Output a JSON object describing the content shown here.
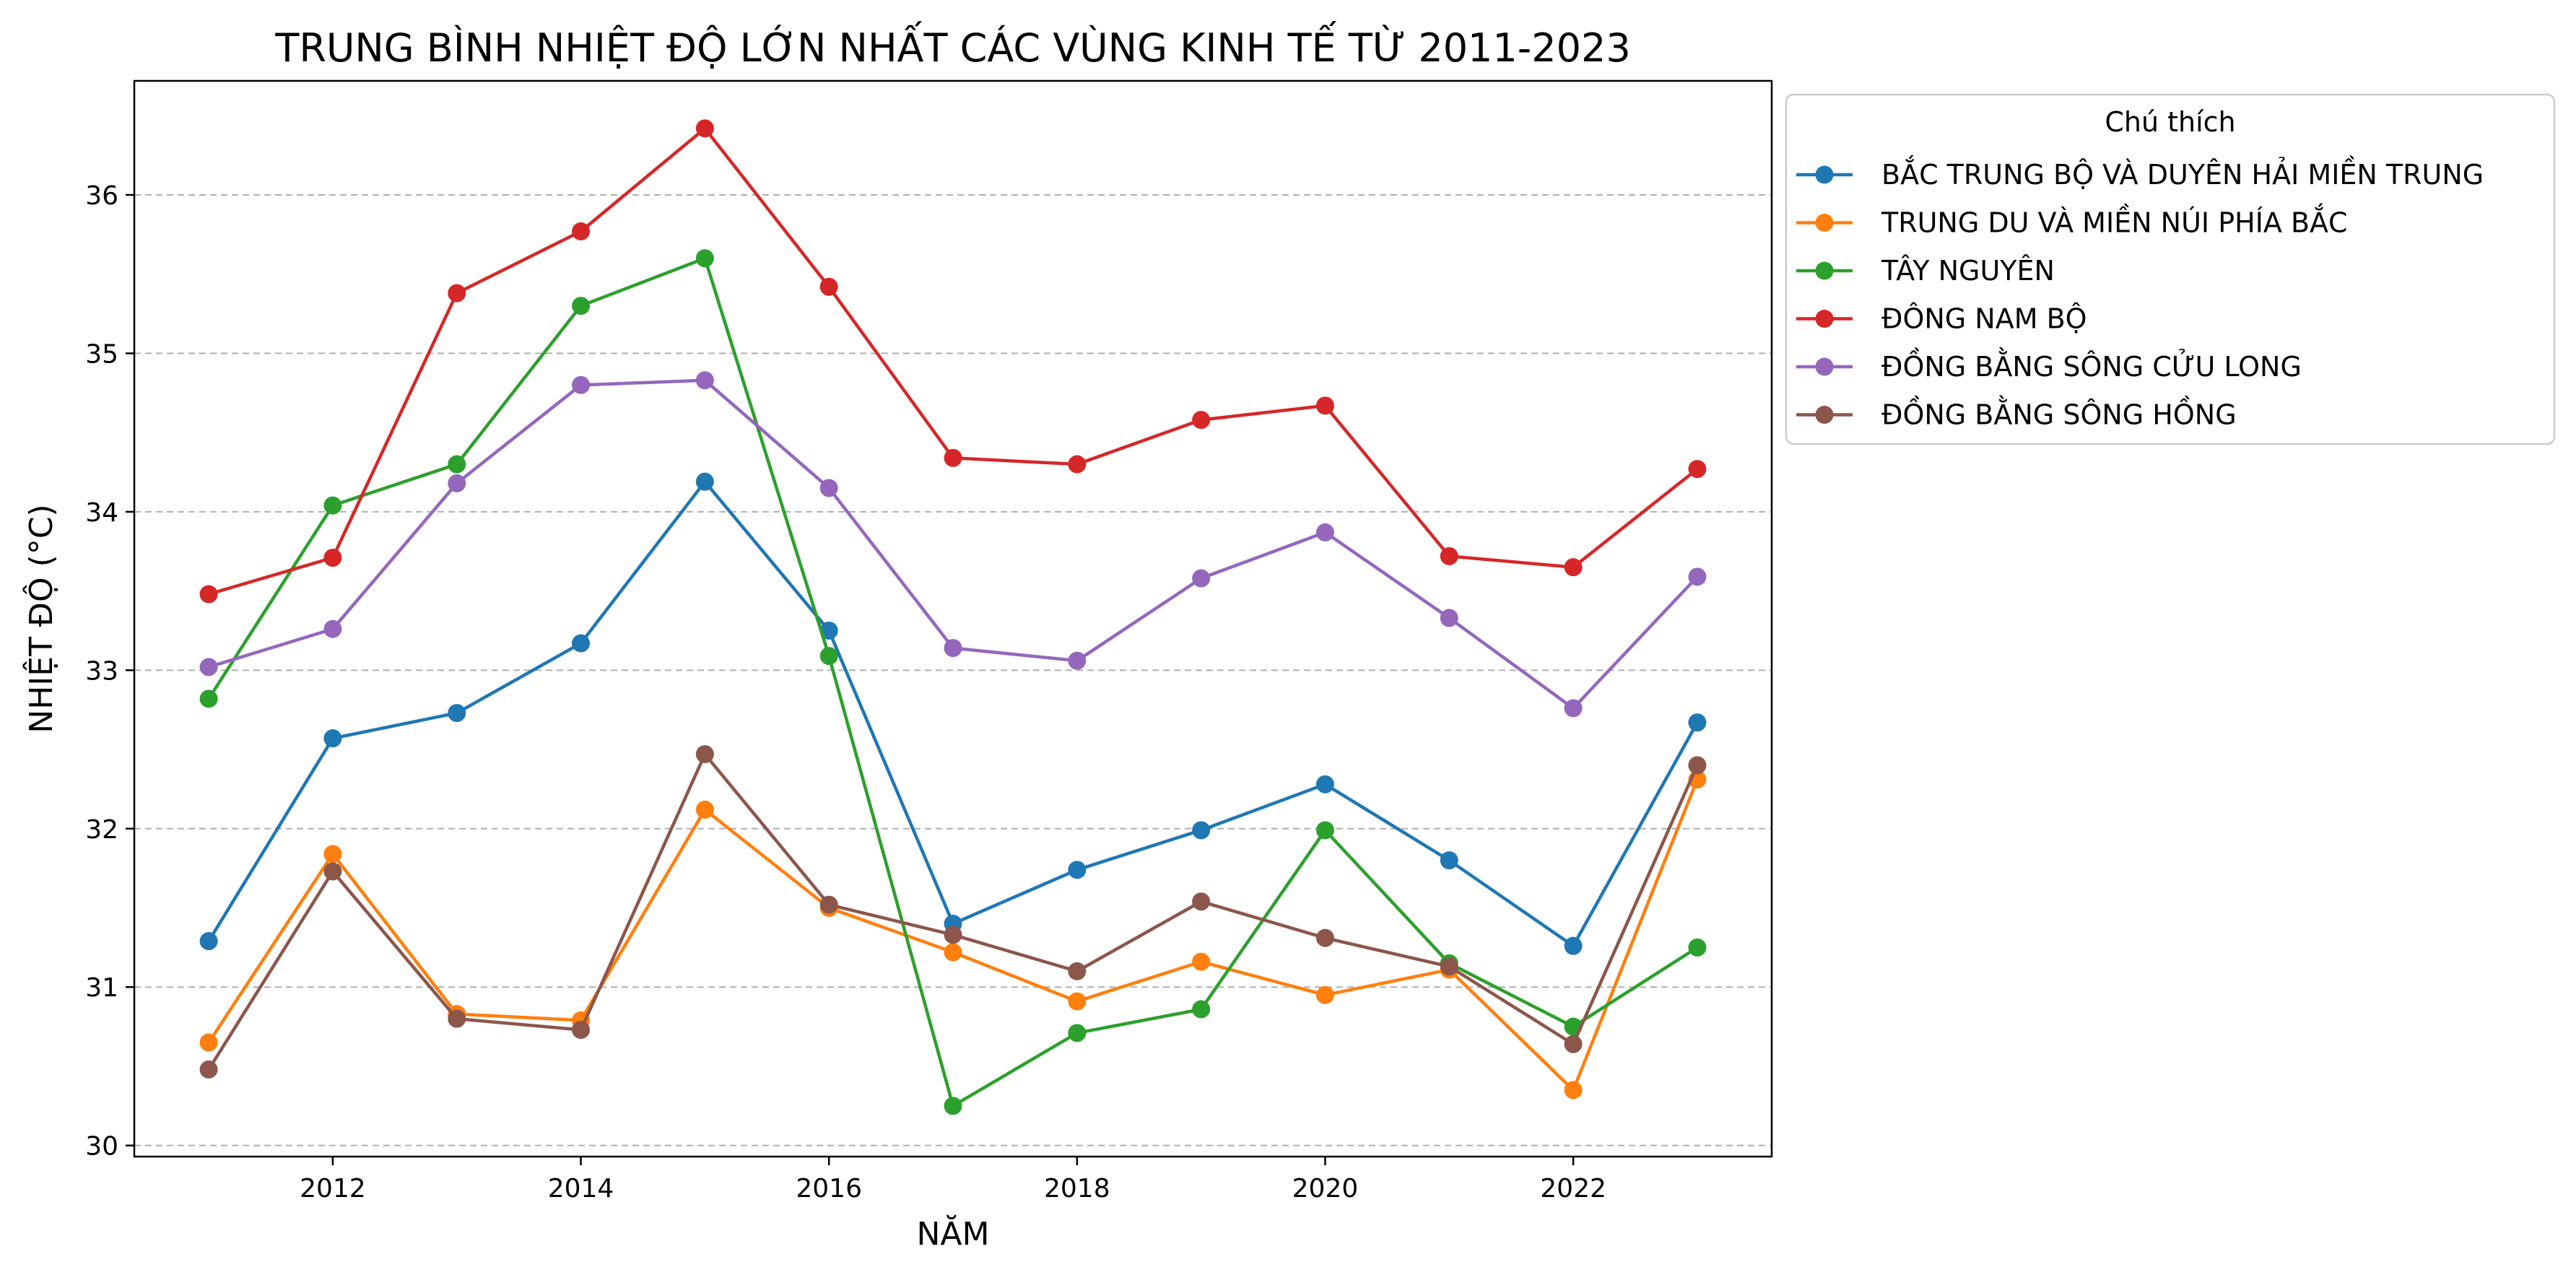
{
  "chart_data": {
    "type": "line",
    "title": "TRUNG BÌNH NHIỆT ĐỘ LỚN NHẤT CÁC VÙNG KINH TẾ TỪ 2011-2023",
    "xlabel": "NĂM",
    "ylabel": "NHIỆT ĐỘ (°C)",
    "xlim": [
      2010.4,
      2023.6
    ],
    "ylim": [
      29.93,
      36.72
    ],
    "xticks": [
      "2012",
      "2014",
      "2016",
      "2018",
      "2020",
      "2022"
    ],
    "yticks": [
      "30",
      "31",
      "32",
      "33",
      "34",
      "35",
      "36"
    ],
    "grid": "y-dashed",
    "legend": {
      "title": "Chú thích",
      "placement": "outside-top-right"
    },
    "x": [
      2011,
      2012,
      2013,
      2014,
      2015,
      2016,
      2017,
      2018,
      2019,
      2020,
      2021,
      2022,
      2023
    ],
    "series": [
      {
        "name": "BẮC TRUNG BỘ VÀ DUYÊN HẢI MIỀN TRUNG",
        "color": "#1f77b4",
        "values": [
          31.29,
          32.57,
          32.73,
          33.17,
          34.19,
          33.25,
          31.4,
          31.74,
          31.99,
          32.28,
          31.8,
          31.26,
          32.67
        ]
      },
      {
        "name": "TRUNG DU VÀ MIỀN NÚI PHÍA BẮC",
        "color": "#ff7f0e",
        "values": [
          30.65,
          31.84,
          30.83,
          30.79,
          32.12,
          31.5,
          31.22,
          30.91,
          31.16,
          30.95,
          31.11,
          30.35,
          32.31
        ]
      },
      {
        "name": "TÂY NGUYÊN",
        "color": "#2ca02c",
        "values": [
          32.82,
          34.04,
          34.3,
          35.3,
          35.6,
          33.09,
          30.25,
          30.71,
          30.86,
          31.99,
          31.15,
          30.75,
          31.25
        ]
      },
      {
        "name": "ĐÔNG NAM BỘ",
        "color": "#d62728",
        "values": [
          33.48,
          33.71,
          35.38,
          35.77,
          36.42,
          35.42,
          34.34,
          34.3,
          34.58,
          34.67,
          33.72,
          33.65,
          34.27
        ]
      },
      {
        "name": "ĐỒNG BẰNG SÔNG CỬU LONG",
        "color": "#9467bd",
        "values": [
          33.02,
          33.26,
          34.18,
          34.8,
          34.83,
          34.15,
          33.14,
          33.06,
          33.58,
          33.87,
          33.33,
          32.76,
          33.59
        ]
      },
      {
        "name": "ĐỒNG BẰNG SÔNG HỒNG",
        "color": "#8c564b",
        "values": [
          30.48,
          31.73,
          30.8,
          30.73,
          32.47,
          31.52,
          31.33,
          31.1,
          31.54,
          31.31,
          31.13,
          30.64,
          32.4
        ]
      }
    ]
  }
}
